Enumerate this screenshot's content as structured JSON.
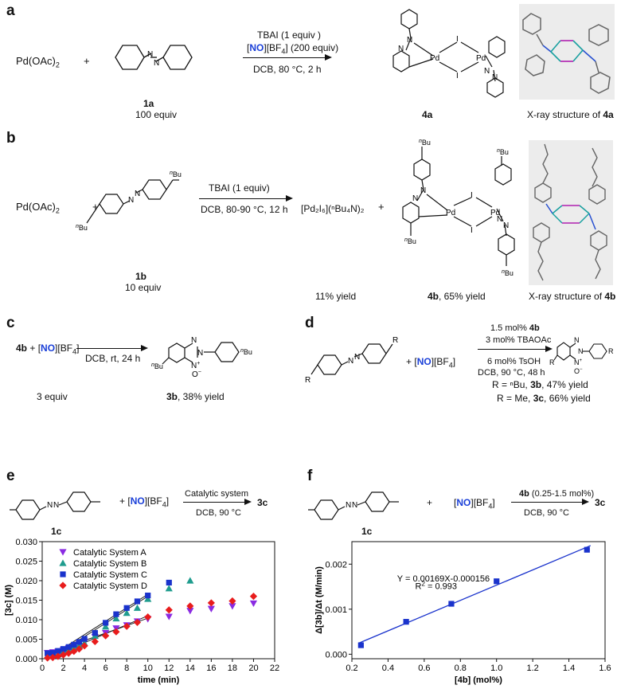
{
  "panels": {
    "a": {
      "letter": "a",
      "reactant1": "Pd(OAc)",
      "reactant1_sub": "2",
      "plus": "+",
      "cond_line1": "TBAI (1 equiv )",
      "cond_line2_no": "NO",
      "cond_line2_rest": "[BF",
      "cond_line2_sub": "4",
      "cond_line2_end": "] (200 equiv)",
      "cond_line3": "DCB, 80 °C, 2 h",
      "compound_label": "1a",
      "compound_equiv": "100 equiv",
      "product_label": "4a",
      "xray_prefix": "X-ray structure of ",
      "xray_label": "4a"
    },
    "b": {
      "letter": "b",
      "reactant1": "Pd(OAc)",
      "reactant1_sub": "2",
      "plus": "+",
      "cond_line1": "TBAI (1 equiv)",
      "cond_line2": "DCB, 80-90 °C, 12 h",
      "byproduct": "[Pd₂I₆](ⁿBu₄N)₂",
      "plus2": "+",
      "compound_label": "1b",
      "compound_equiv": "10 equiv",
      "byproduct_yield": "11%  yield",
      "product_label": "4b",
      "product_yield": ", 65%  yield",
      "xray_prefix": "X-ray structure of ",
      "xray_label": "4b"
    },
    "c": {
      "letter": "c",
      "reactant": "4b",
      "plus": " + [",
      "no": "NO",
      "bf4": "][BF",
      "bf4_sub": "4",
      "bf4_end": "]",
      "cond": "DCB, rt, 24 h",
      "equiv": "3 equiv",
      "product_label": "3b",
      "product_yield": ", 38% yield"
    },
    "d": {
      "letter": "d",
      "plus": "+ [",
      "no": "NO",
      "bf4": "][BF",
      "bf4_sub": "4",
      "bf4_end": "]",
      "cond_line1_pre": "1.5 mol% ",
      "cond_line1_b": "4b",
      "cond_line2": "3 mol% TBAOAc",
      "cond_line3": "6 mol% TsOH",
      "cond_line4": "DCB, 90 °C, 48 h",
      "result1_pre": "R = ⁿBu, ",
      "result1_b": "3b",
      "result1_post": ", 47% yield",
      "result2_pre": "R = Me, ",
      "result2_b": "3c",
      "result2_post": ", 66% yield"
    },
    "e": {
      "letter": "e",
      "plus": "+ [",
      "no": "NO",
      "bf4": "][BF",
      "bf4_sub": "4",
      "bf4_end": "]",
      "cond_top": "Catalytic system",
      "cond_bottom": "DCB, 90 °C",
      "product": "3c",
      "compound_label": "1c"
    },
    "f": {
      "letter": "f",
      "plus": "+",
      "no": "NO",
      "bf4": "[BF",
      "bf4_sub": "4",
      "bf4_end": "]",
      "cond_top_b": "4b",
      "cond_top_rest": " (0.25-1.5 mol%)",
      "cond_bottom": "DCB, 90 °C",
      "product": "3c",
      "compound_label": "1c"
    }
  },
  "struct_labels": {
    "pd": "Pd",
    "i": "I",
    "n": "N",
    "nplus": "N",
    "ominus": "O",
    "bu": "Bu",
    "nbu_sup": "n",
    "r": "R"
  },
  "chart_data": [
    {
      "type": "scatter",
      "xlabel": "time (min)",
      "ylabel": "[3c] (M)",
      "xlim": [
        0,
        22
      ],
      "ylim": [
        0,
        0.03
      ],
      "xticks": [
        "0",
        "2",
        "4",
        "6",
        "8",
        "10",
        "12",
        "14",
        "16",
        "18",
        "20",
        "22"
      ],
      "yticks": [
        "0.000",
        "0.005",
        "0.010",
        "0.015",
        "0.020",
        "0.025",
        "0.030"
      ],
      "legend_position": "top-left",
      "series": [
        {
          "name": "Catalytic System A",
          "color": "#8a2be2",
          "marker": "triangle-down",
          "x": [
            0.5,
            1,
            1.5,
            2,
            2.5,
            3,
            3.5,
            4,
            5,
            6,
            7,
            8,
            9,
            10,
            12,
            14,
            16,
            18,
            20
          ],
          "y": [
            0.0015,
            0.0017,
            0.0019,
            0.0023,
            0.0027,
            0.0031,
            0.0038,
            0.0044,
            0.0056,
            0.0066,
            0.0078,
            0.0086,
            0.0096,
            0.0102,
            0.0108,
            0.0123,
            0.0128,
            0.0135,
            0.0142
          ],
          "fit": [
            [
              0.5,
              0.0013
            ],
            [
              10,
              0.0104
            ]
          ]
        },
        {
          "name": "Catalytic System B",
          "color": "#1f9c8e",
          "marker": "triangle-up",
          "x": [
            0.5,
            1,
            1.5,
            2,
            2.5,
            3,
            3.5,
            4,
            5,
            6,
            7,
            8,
            9,
            10,
            12,
            14
          ],
          "y": [
            0.0007,
            0.0009,
            0.0011,
            0.0017,
            0.0022,
            0.0028,
            0.0034,
            0.004,
            0.0058,
            0.0082,
            0.0103,
            0.0117,
            0.013,
            0.0153,
            0.018,
            0.02
          ],
          "fit": [
            [
              1,
              0.0005
            ],
            [
              10,
              0.016
            ]
          ]
        },
        {
          "name": "Catalytic System C",
          "color": "#1a33cc",
          "marker": "square",
          "x": [
            0.5,
            1,
            1.5,
            2,
            2.5,
            3,
            3.5,
            4,
            5,
            6,
            7,
            8,
            9,
            10,
            12
          ],
          "y": [
            0.0014,
            0.0015,
            0.002,
            0.0025,
            0.003,
            0.0036,
            0.0043,
            0.0051,
            0.0066,
            0.0092,
            0.0114,
            0.013,
            0.0147,
            0.0162,
            0.0195
          ],
          "fit": [
            [
              1,
              0.001
            ],
            [
              10,
              0.0165
            ]
          ]
        },
        {
          "name": "Catalytic System D",
          "color": "#e81c1c",
          "marker": "diamond",
          "x": [
            0.5,
            1,
            1.5,
            2,
            2.5,
            3,
            3.5,
            4,
            5,
            6,
            7,
            8,
            9,
            10,
            12,
            14,
            16,
            18,
            20
          ],
          "y": [
            0.0002,
            0.0003,
            0.0006,
            0.001,
            0.0014,
            0.0019,
            0.0025,
            0.0033,
            0.0044,
            0.0059,
            0.0069,
            0.0083,
            0.0093,
            0.0107,
            0.0125,
            0.0135,
            0.0143,
            0.0148,
            0.016
          ],
          "fit": [
            [
              0.5,
              0.0001
            ],
            [
              10,
              0.011
            ]
          ]
        }
      ]
    },
    {
      "type": "scatter",
      "xlabel": "[4b] (mol%)",
      "ylabel": "Δ[3b]/Δt (M/min)",
      "xlim": [
        0.2,
        1.6
      ],
      "ylim": [
        -0.0001,
        0.0025
      ],
      "xticks": [
        "0.2",
        "0.4",
        "0.6",
        "0.8",
        "1.0",
        "1.2",
        "1.4",
        "1.6"
      ],
      "yticks": [
        "0.000",
        "0.001",
        "0.002"
      ],
      "annotation_eq": "Y = 0.00169X-0.000156",
      "annotation_r2_pre": "R",
      "annotation_r2_sup": "2",
      "annotation_r2_post": " = 0.993",
      "series": [
        {
          "color": "#1a33cc",
          "marker": "square",
          "x": [
            0.25,
            0.5,
            0.75,
            1.0,
            1.5
          ],
          "y": [
            0.0002,
            0.00072,
            0.00112,
            0.00162,
            0.00232
          ]
        }
      ],
      "fit": {
        "slope": 0.00169,
        "intercept": -0.000156,
        "x_range": [
          0.25,
          1.5
        ],
        "color": "#1a33cc"
      }
    }
  ]
}
